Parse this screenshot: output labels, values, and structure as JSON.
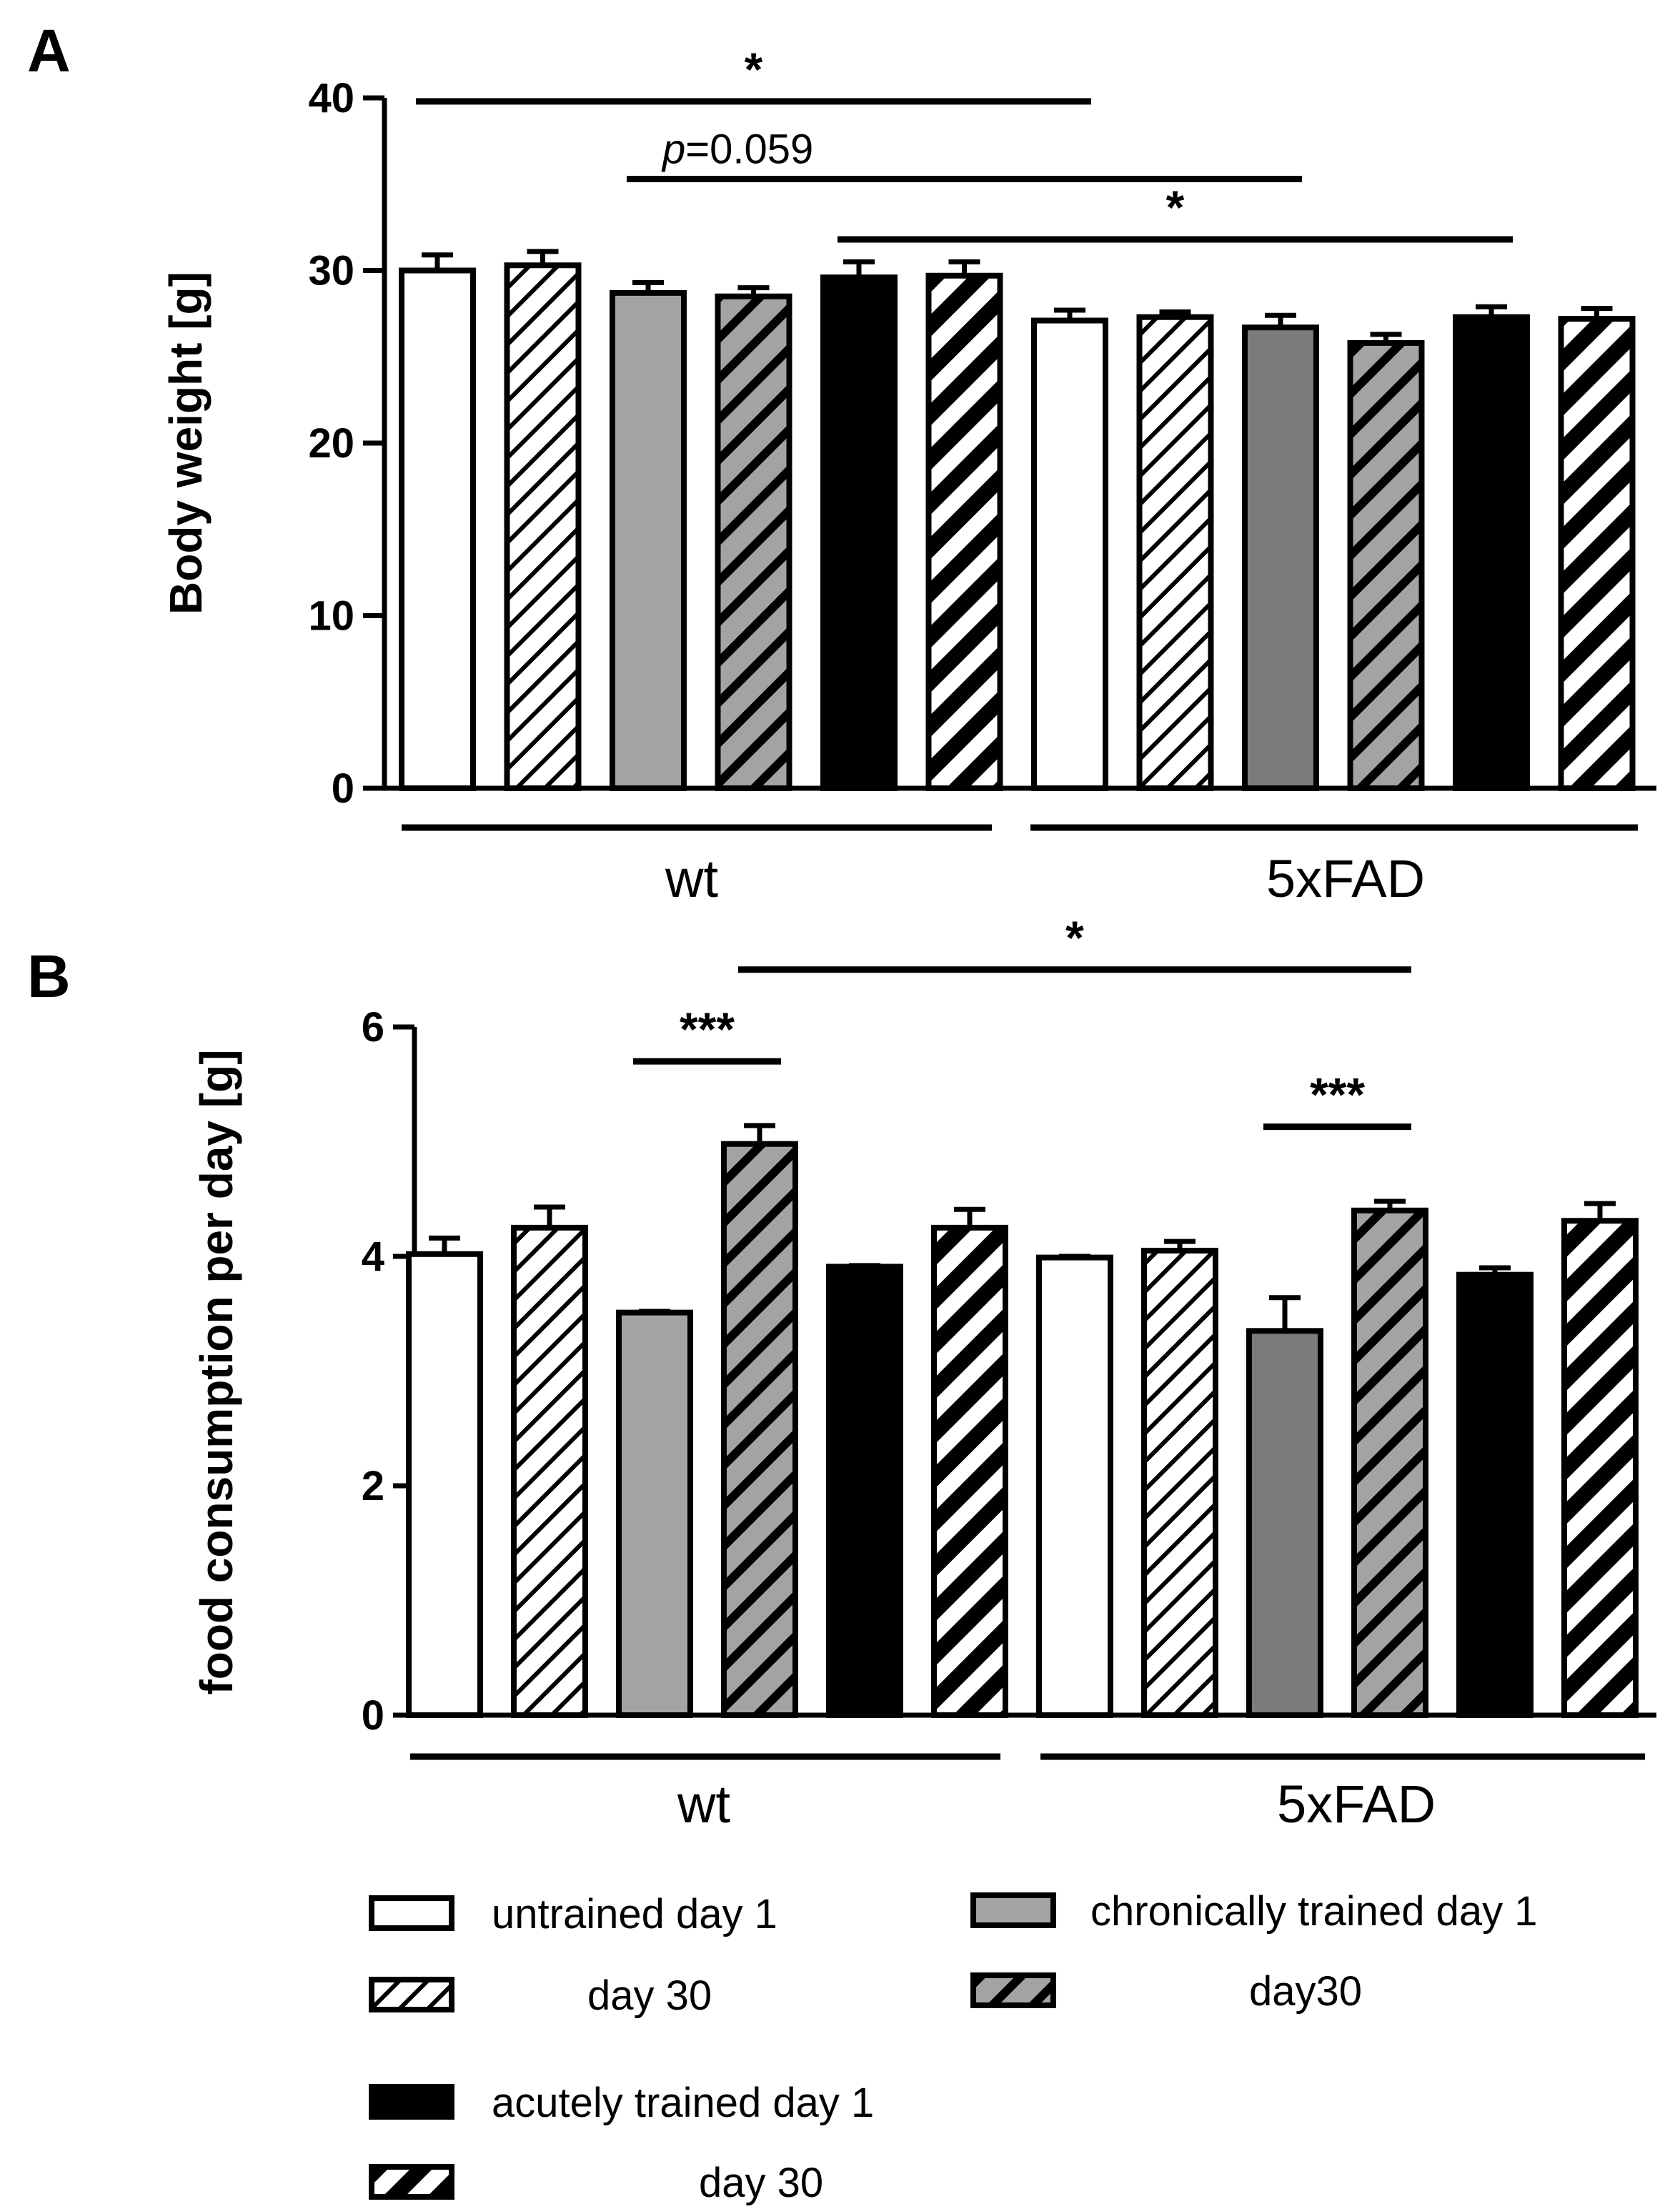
{
  "chart_data": [
    {
      "type": "bar",
      "panel_label": "A",
      "ylabel": "Body weight [g]",
      "ylim": [
        0,
        40
      ],
      "yticks": [
        0,
        10,
        20,
        30,
        40
      ],
      "categories": [
        "wt untrained day 1",
        "wt untrained day 30",
        "wt chronically trained day 1",
        "wt chronically trained day30",
        "wt acutely trained day 1",
        "wt acutely trained day 30",
        "5xFAD untrained day 1",
        "5xFAD untrained day 30",
        "5xFAD chronically trained day 1",
        "5xFAD chronically trained day30",
        "5xFAD acutely trained day 1",
        "5xFAD acutely trained day 30"
      ],
      "styles": [
        "white",
        "white_hatch",
        "grey",
        "grey_hatch",
        "black",
        "black_hatch",
        "white",
        "white_hatch",
        "grey_dark",
        "grey_hatch",
        "black",
        "black_hatch"
      ],
      "values": [
        30.0,
        30.3,
        28.7,
        28.5,
        29.6,
        29.7,
        27.1,
        27.3,
        26.7,
        25.8,
        27.3,
        27.2
      ],
      "errors": [
        0.9,
        0.8,
        0.6,
        0.5,
        0.9,
        0.8,
        0.6,
        0.3,
        0.7,
        0.5,
        0.6,
        0.6
      ],
      "groups": [
        {
          "label": "wt",
          "from": 0,
          "to": 5
        },
        {
          "label": "5xFAD",
          "from": 6,
          "to": 11
        }
      ],
      "significance": [
        {
          "from": 0,
          "to": 6,
          "y": 39.8,
          "label": "*",
          "label_pos": "center"
        },
        {
          "from": 2,
          "to": 8,
          "y": 35.3,
          "label": "p=0.059",
          "label_pos": "left"
        },
        {
          "from": 4,
          "to": 10,
          "y": 31.8,
          "label": "*",
          "label_pos": "center"
        }
      ]
    },
    {
      "type": "bar",
      "panel_label": "B",
      "ylabel": "food consumption per day [g]",
      "ylim": [
        0,
        6
      ],
      "yticks": [
        0,
        2,
        4,
        6
      ],
      "categories": [
        "wt untrained day 1",
        "wt untrained day 30",
        "wt chronically trained day 1",
        "wt chronically trained day30",
        "wt acutely trained day 1",
        "wt acutely trained day 30",
        "5xFAD untrained day 1",
        "5xFAD untrained day 30",
        "5xFAD chronically trained day 1",
        "5xFAD chronically trained day30",
        "5xFAD acutely trained day 1",
        "5xFAD acutely trained day 30"
      ],
      "styles": [
        "white",
        "white_hatch",
        "grey",
        "grey_hatch",
        "black",
        "black_hatch",
        "white",
        "white_hatch",
        "grey_dark",
        "grey_hatch",
        "black",
        "black_hatch"
      ],
      "values": [
        4.02,
        4.25,
        3.51,
        4.98,
        3.91,
        4.25,
        3.99,
        4.05,
        3.35,
        4.4,
        3.84,
        4.31
      ],
      "errors": [
        0.14,
        0.18,
        0.01,
        0.16,
        0.01,
        0.16,
        0.01,
        0.08,
        0.29,
        0.08,
        0.06,
        0.15
      ],
      "groups": [
        {
          "label": "wt",
          "from": 0,
          "to": 5
        },
        {
          "label": "5xFAD",
          "from": 6,
          "to": 11
        }
      ],
      "significance": [
        {
          "from": 2,
          "to": 3,
          "y": 5.7,
          "label": "***",
          "label_pos": "center"
        },
        {
          "from": 3,
          "to": 9,
          "y": 6.5,
          "label": "*",
          "label_pos": "center"
        },
        {
          "from": 8,
          "to": 9,
          "y": 5.13,
          "label": "***",
          "label_pos": "center"
        }
      ]
    }
  ],
  "legend": [
    {
      "style": "white",
      "label": "untrained day 1"
    },
    {
      "style": "white_hatch",
      "label": "day 30"
    },
    {
      "style": "black",
      "label": "acutely trained day 1"
    },
    {
      "style": "black_hatch",
      "label": "day 30"
    },
    {
      "style": "grey",
      "label": "chronically trained day 1"
    },
    {
      "style": "grey_hatch",
      "label": "day30"
    }
  ],
  "colors": {
    "white": "#ffffff",
    "grey": "#a3a3a5",
    "grey_dark": "#7b7b7d",
    "black": "#000000",
    "stroke": "#000000"
  }
}
